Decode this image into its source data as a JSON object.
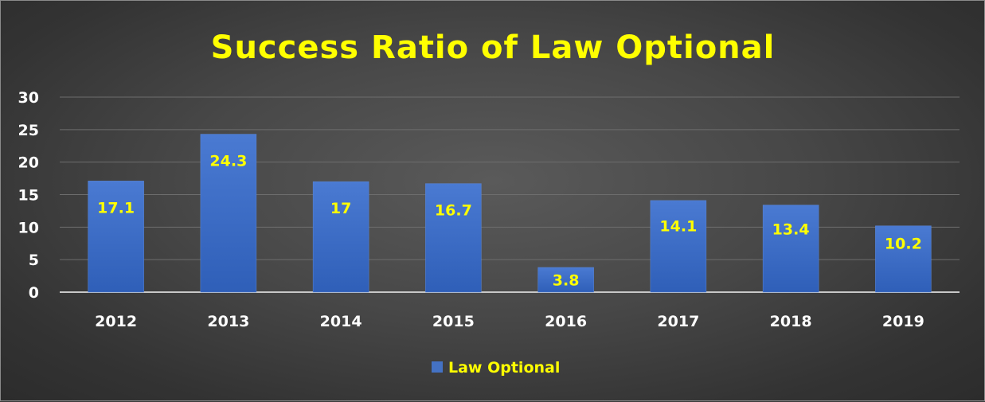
{
  "chart_data": {
    "type": "bar",
    "title": "Success Ratio of Law Optional",
    "categories": [
      "2012",
      "2013",
      "2014",
      "2015",
      "2016",
      "2017",
      "2018",
      "2019"
    ],
    "series": [
      {
        "name": "Law Optional",
        "values": [
          17.1,
          24.3,
          17,
          16.7,
          3.8,
          14.1,
          13.4,
          10.2
        ],
        "data_labels": [
          "17.1",
          "24.3",
          "17",
          "16.7",
          "3.8",
          "14.1",
          "13.4",
          "10.2"
        ]
      }
    ],
    "ylim": [
      0,
      30
    ],
    "yticks": [
      "0",
      "5",
      "10",
      "15",
      "20",
      "25",
      "30"
    ],
    "grid": true,
    "legend_position": "bottom",
    "colors": {
      "bar": "#4472c4",
      "title": "#ffff00",
      "data_label": "#ffff00",
      "legend_text": "#ffff00",
      "tick_text": "#ffffff",
      "gridline": "#6e6e6e"
    }
  }
}
